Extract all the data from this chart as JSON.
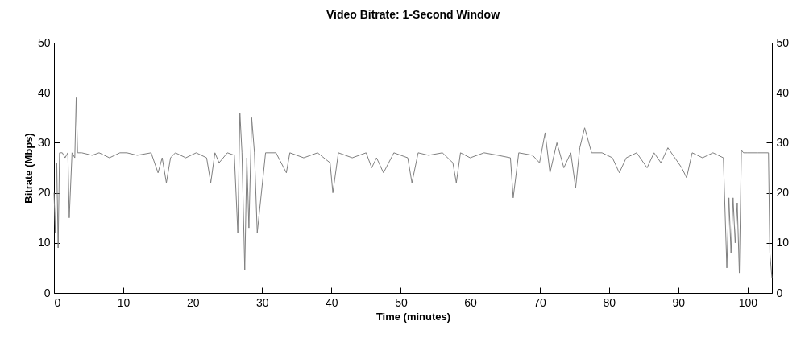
{
  "chart_data": {
    "type": "line",
    "title": "Video Bitrate: 1-Second Window",
    "xlabel": "Time (minutes)",
    "ylabel": "Bitrate (Mbps)",
    "xlim": [
      0,
      103.5
    ],
    "xticks": [
      0,
      10,
      20,
      30,
      40,
      50,
      60,
      70,
      80,
      90,
      100
    ],
    "ylim": [
      0,
      50
    ],
    "yticks": [
      0,
      10,
      20,
      30,
      40,
      50
    ],
    "y2lim": [
      0,
      50
    ],
    "y2ticks": [
      0,
      10,
      20,
      30,
      40,
      50
    ],
    "grid": false,
    "series": [
      {
        "color": "#808080",
        "x": [
          0,
          0.2,
          0.4,
          0.6,
          0.8,
          1.2,
          1.6,
          2.0,
          2.2,
          2.6,
          3.0,
          3.2,
          3.4,
          4.0,
          5.5,
          6.5,
          8.0,
          9.5,
          10.5,
          12.0,
          14.0,
          15.0,
          15.6,
          16.2,
          16.8,
          17.5,
          19.0,
          20.5,
          22.0,
          22.6,
          23.2,
          23.8,
          25.0,
          26.0,
          26.5,
          26.8,
          27.1,
          27.5,
          27.8,
          28.1,
          28.5,
          28.9,
          29.3,
          30.5,
          32.0,
          33.5,
          34.0,
          36.0,
          38.0,
          39.8,
          40.2,
          41.0,
          43.0,
          45.0,
          45.8,
          46.5,
          47.5,
          49.0,
          51.0,
          51.6,
          52.5,
          54.0,
          56.0,
          57.5,
          58.0,
          58.6,
          60.0,
          62.0,
          64.0,
          65.8,
          66.2,
          67.0,
          69.0,
          70.0,
          70.8,
          71.5,
          72.5,
          73.5,
          74.5,
          75.2,
          75.8,
          76.5,
          77.5,
          79.0,
          80.5,
          81.5,
          82.5,
          84.0,
          85.5,
          86.5,
          87.5,
          88.5,
          89.5,
          90.5,
          91.2,
          92.0,
          93.5,
          95.0,
          96.5,
          97.0,
          97.3,
          97.6,
          97.9,
          98.2,
          98.5,
          98.8,
          99.1,
          99.4,
          100.0,
          101.5,
          103.0,
          103.2,
          103.5
        ],
        "values": [
          20,
          12,
          26,
          9,
          28,
          28,
          27,
          28,
          15,
          28,
          27,
          39,
          28,
          28,
          27.5,
          28,
          27,
          28,
          28,
          27.5,
          28,
          24,
          27,
          22,
          27,
          28,
          27,
          28,
          27,
          22,
          28,
          26,
          28,
          27.5,
          12,
          36,
          28,
          4.5,
          27,
          13,
          35,
          28,
          12,
          28,
          28,
          24,
          28,
          27,
          28,
          26,
          20,
          28,
          27,
          28,
          25,
          27,
          24,
          28,
          27,
          22,
          28,
          27.5,
          28,
          26,
          22,
          28,
          27,
          28,
          27.5,
          27,
          19,
          28,
          27.5,
          26,
          32,
          24,
          30,
          25,
          28,
          21,
          29,
          33,
          28,
          28,
          27,
          24,
          27,
          28,
          25,
          28,
          26,
          29,
          27,
          25,
          23,
          28,
          27,
          28,
          27,
          5,
          19,
          8,
          19,
          10,
          18,
          4,
          28.5,
          28,
          28,
          28,
          28,
          8,
          3
        ]
      }
    ]
  }
}
